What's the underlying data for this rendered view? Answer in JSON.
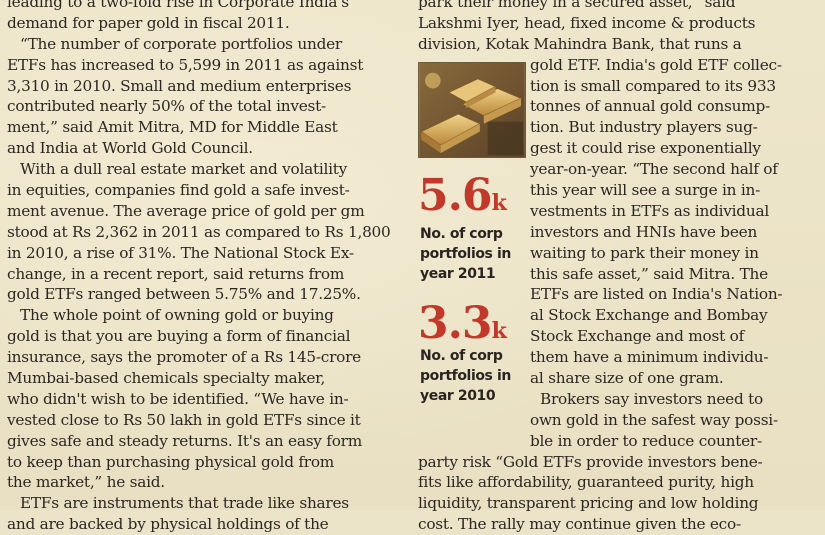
{
  "article": {
    "left_column": [
      {
        "text": "leading to a two-fold rise in Corporate India's",
        "indent": false
      },
      {
        "text": "demand for paper gold in fiscal 2011.",
        "indent": false
      },
      {
        "text": "“The number of corporate portfolios under",
        "indent": true
      },
      {
        "text": "ETFs has increased to 5,599 in 2011 as against",
        "indent": false
      },
      {
        "text": "3,310 in 2010. Small and medium enterprises",
        "indent": false
      },
      {
        "text": "contributed nearly 50% of the total invest-",
        "indent": false
      },
      {
        "text": "ment,” said Amit Mitra, MD for Middle East",
        "indent": false
      },
      {
        "text": "and India at World Gold Council.",
        "indent": false
      },
      {
        "text": "With a dull real estate market and volatility",
        "indent": true
      },
      {
        "text": "in equities, companies find gold a safe invest-",
        "indent": false
      },
      {
        "text": "ment avenue. The average price of gold per gm",
        "indent": false
      },
      {
        "text": "stood at Rs 2,362 in 2011 as compared to Rs 1,800",
        "indent": false
      },
      {
        "text": "in 2010, a rise of 31%. The National Stock Ex-",
        "indent": false
      },
      {
        "text": "change, in a recent report, said returns from",
        "indent": false
      },
      {
        "text": "gold ETFs ranged between 5.75% and 17.25%.",
        "indent": false
      },
      {
        "text": "The whole point of owning gold or buying",
        "indent": true
      },
      {
        "text": "gold is that you are buying a form of financial",
        "indent": false
      },
      {
        "text": "insurance, says the promoter of a Rs 145-crore",
        "indent": false
      },
      {
        "text": "Mumbai-based chemicals specialty maker,",
        "indent": false
      },
      {
        "text": "who didn't wish to be identified. “We have in-",
        "indent": false
      },
      {
        "text": "vested close to Rs 50 lakh in gold ETFs since it",
        "indent": false
      },
      {
        "text": "gives safe and steady returns. It's an easy form",
        "indent": false
      },
      {
        "text": "to keep than purchasing physical gold from",
        "indent": false
      },
      {
        "text": "the market,” he said.",
        "indent": false
      },
      {
        "text": "ETFs are instruments that trade like shares",
        "indent": true
      },
      {
        "text": "and are backed by physical holdings of the",
        "indent": false
      }
    ],
    "right_column": [
      {
        "text": "park their money in a secured asset,” said",
        "wrap": "none"
      },
      {
        "text": "Lakshmi Iyer, head, fixed income & products",
        "wrap": "none"
      },
      {
        "text": "division, Kotak Mahindra Bank, that runs a",
        "wrap": "none"
      },
      {
        "text": "gold ETF. India's gold ETF collec-",
        "wrap": "narrow"
      },
      {
        "text": "tion is small compared to its 933",
        "wrap": "narrow"
      },
      {
        "text": "tonnes of annual gold consump-",
        "wrap": "narrow"
      },
      {
        "text": "tion. But industry players sug-",
        "wrap": "narrow"
      },
      {
        "text": "gest it could rise exponentially",
        "wrap": "narrow"
      },
      {
        "text": "year-on-year. “The second half of",
        "wrap": "narrow"
      },
      {
        "text": "this year will see a surge in in-",
        "wrap": "narrow"
      },
      {
        "text": "vestments in ETFs as individual",
        "wrap": "narrow"
      },
      {
        "text": "investors and HNIs have been",
        "wrap": "narrow"
      },
      {
        "text": "waiting to park their money in",
        "wrap": "narrow"
      },
      {
        "text": "this safe asset,” said Mitra. The",
        "wrap": "narrow"
      },
      {
        "text": "ETFs are listed on India's Nation-",
        "wrap": "narrow"
      },
      {
        "text": "al Stock Exchange and Bombay",
        "wrap": "narrow"
      },
      {
        "text": "Stock Exchange and most of",
        "wrap": "narrow"
      },
      {
        "text": "them have a minimum individu-",
        "wrap": "narrow"
      },
      {
        "text": "al share size of one gram.",
        "wrap": "narrow"
      },
      {
        "text": "Brokers say investors need to",
        "wrap": "narrow2"
      },
      {
        "text": "own gold in the safest way possi-",
        "wrap": "narrow"
      },
      {
        "text": "ble in order to reduce counter-",
        "wrap": "narrow"
      },
      {
        "text": "party risk “Gold ETFs provide investors bene-",
        "wrap": "none"
      },
      {
        "text": "fits like affordability, guaranteed purity, high",
        "wrap": "none"
      },
      {
        "text": "liquidity, transparent pricing and low holding",
        "wrap": "none"
      },
      {
        "text": "cost. The rally may continue given the eco-",
        "wrap": "none"
      }
    ]
  },
  "sidebar": {
    "photo_icon": "gold-bars-photo",
    "stat_2011": {
      "value": "5.6",
      "unit": "k",
      "label_lines": [
        "No. of corp",
        "portfolios in",
        "year 2011"
      ]
    },
    "stat_2010": {
      "value": "3.3",
      "unit": "k",
      "label_lines": [
        "No. of corp",
        "portfolios in",
        "year 2010"
      ]
    },
    "stat_color": "#c0392b"
  }
}
